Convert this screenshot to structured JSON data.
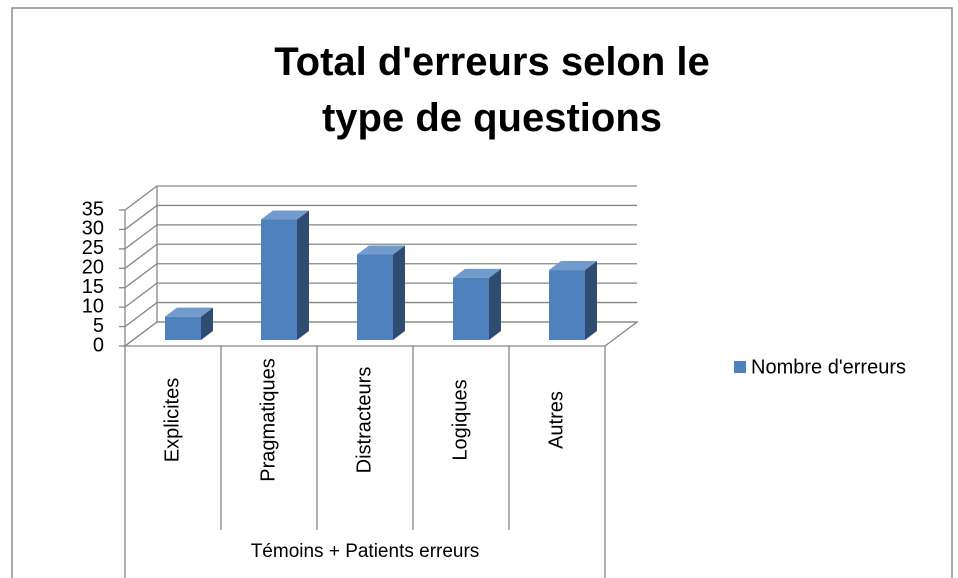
{
  "chart_data": {
    "type": "bar3d",
    "title": "Total d'erreurs selon le type de questions",
    "categories": [
      "Explicites",
      "Pragmatiques",
      "Distracteurs",
      "Logiques",
      "Autres"
    ],
    "x_group_label": "Témoins + Patients erreurs",
    "series": [
      {
        "name": "Nombre d'erreurs",
        "color": "#4f81bd",
        "values": [
          6,
          31,
          22,
          16,
          18
        ]
      }
    ],
    "ylim": [
      0,
      35
    ],
    "yticks": [
      0,
      5,
      10,
      15,
      20,
      25,
      30,
      35
    ],
    "grid": true,
    "legend": "right"
  }
}
